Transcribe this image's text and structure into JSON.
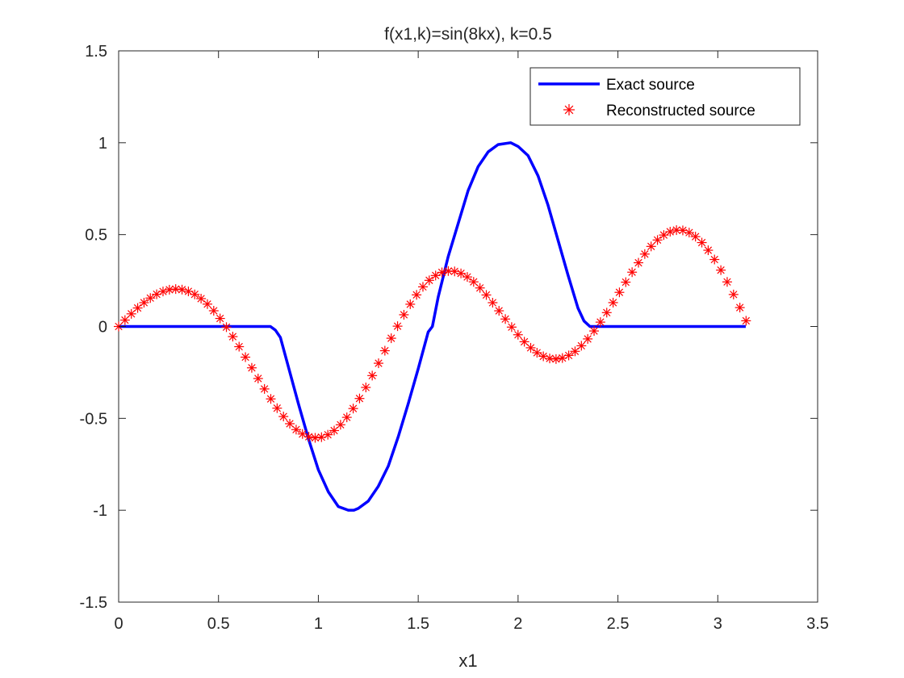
{
  "chart_data": {
    "type": "line",
    "title": "f(x1,k)=sin(8kx),   k=0.5",
    "xlabel": "x1",
    "ylabel": "",
    "xlim": [
      0,
      3.5
    ],
    "ylim": [
      -1.5,
      1.5
    ],
    "xticks": [
      0,
      0.5,
      1,
      1.5,
      2,
      2.5,
      3,
      3.5
    ],
    "xtick_labels": [
      "0",
      "0.5",
      "1",
      "1.5",
      "2",
      "2.5",
      "3",
      "3.5"
    ],
    "yticks": [
      -1.5,
      -1,
      -0.5,
      0,
      0.5,
      1,
      1.5
    ],
    "ytick_labels": [
      "-1.5",
      "-1",
      "-0.5",
      "0",
      "0.5",
      "1",
      "1.5"
    ],
    "grid": false,
    "legend_position": "top-right",
    "series": [
      {
        "name": "Exact source",
        "style": "line",
        "color": "#0000ff",
        "x": [
          0,
          0.2,
          0.4,
          0.6,
          0.76,
          0.785,
          0.81,
          0.85,
          0.9,
          0.95,
          1.0,
          1.05,
          1.1,
          1.15,
          1.178,
          1.2,
          1.25,
          1.3,
          1.35,
          1.4,
          1.45,
          1.5,
          1.55,
          1.571,
          1.6,
          1.65,
          1.7,
          1.75,
          1.8,
          1.85,
          1.9,
          1.963,
          2.0,
          2.05,
          2.1,
          2.15,
          2.2,
          2.25,
          2.3,
          2.33,
          2.36,
          2.38,
          2.6,
          2.8,
          3.0,
          3.14
        ],
        "y": [
          0,
          0,
          0,
          0,
          0,
          -0.02,
          -0.06,
          -0.22,
          -0.42,
          -0.61,
          -0.78,
          -0.9,
          -0.98,
          -1.0,
          -1.0,
          -0.99,
          -0.95,
          -0.87,
          -0.76,
          -0.6,
          -0.42,
          -0.23,
          -0.03,
          0.0,
          0.16,
          0.38,
          0.56,
          0.74,
          0.87,
          0.95,
          0.99,
          1.0,
          0.98,
          0.93,
          0.82,
          0.66,
          0.47,
          0.28,
          0.1,
          0.03,
          0.0,
          0.0,
          0,
          0,
          0,
          0
        ]
      },
      {
        "name": "Reconstructed source",
        "style": "marker",
        "marker": "asterisk",
        "color": "#ff0000",
        "x": [
          0,
          0.0317,
          0.0635,
          0.0952,
          0.127,
          0.1587,
          0.1905,
          0.2222,
          0.254,
          0.2857,
          0.3174,
          0.3492,
          0.3809,
          0.4127,
          0.4444,
          0.4761,
          0.5079,
          0.5396,
          0.5714,
          0.6031,
          0.6348,
          0.6666,
          0.6983,
          0.7301,
          0.7618,
          0.7935,
          0.8253,
          0.857,
          0.8888,
          0.9205,
          0.9522,
          0.984,
          1.0157,
          1.0475,
          1.0792,
          1.111,
          1.1427,
          1.1744,
          1.2062,
          1.2379,
          1.2697,
          1.3014,
          1.3331,
          1.3649,
          1.3966,
          1.4284,
          1.4601,
          1.4918,
          1.5236,
          1.5553,
          1.5871,
          1.6188,
          1.6505,
          1.6823,
          1.714,
          1.7458,
          1.7775,
          1.8092,
          1.841,
          1.8727,
          1.9045,
          1.9362,
          1.9679,
          1.9997,
          2.0314,
          2.0632,
          2.0949,
          2.1266,
          2.1584,
          2.1901,
          2.2219,
          2.2536,
          2.2853,
          2.3171,
          2.3488,
          2.3806,
          2.4123,
          2.4441,
          2.4758,
          2.5075,
          2.5393,
          2.571,
          2.6028,
          2.6345,
          2.6662,
          2.698,
          2.7297,
          2.7615,
          2.7932,
          2.8249,
          2.8567,
          2.8884,
          2.9202,
          2.9519,
          2.9836,
          3.0154,
          3.0471,
          3.0789,
          3.1106,
          3.1416
        ],
        "y": [
          0,
          0.0349,
          0.0688,
          0.1007,
          0.1297,
          0.1548,
          0.1753,
          0.1906,
          0.2002,
          0.2037,
          0.2007,
          0.1911,
          0.1747,
          0.1516,
          0.1218,
          0.0857,
          0.0437,
          -0.0036,
          -0.055,
          -0.1098,
          -0.1668,
          -0.225,
          -0.2831,
          -0.3399,
          -0.3941,
          -0.4445,
          -0.4899,
          -0.5291,
          -0.5611,
          -0.585,
          -0.6001,
          -0.6059,
          -0.6023,
          -0.5891,
          -0.5664,
          -0.5347,
          -0.4945,
          -0.4465,
          -0.3918,
          -0.3316,
          -0.2672,
          -0.2001,
          -0.1318,
          -0.064,
          0.0017,
          0.0639,
          0.1212,
          0.1722,
          0.2158,
          0.2511,
          0.2774,
          0.2944,
          0.3018,
          0.2998,
          0.2889,
          0.2696,
          0.2429,
          0.2098,
          0.1715,
          0.1296,
          0.0854,
          0.0406,
          -0.0033,
          -0.045,
          -0.083,
          -0.1159,
          -0.1427,
          -0.1623,
          -0.1739,
          -0.1772,
          -0.1717,
          -0.1576,
          -0.1352,
          -0.1049,
          -0.0677,
          -0.0244,
          0.0237,
          0.0755,
          0.1299,
          0.1857,
          0.2413,
          0.2955,
          0.3469,
          0.3941,
          0.4357,
          0.4706,
          0.4976,
          0.5158,
          0.5245,
          0.523,
          0.5111,
          0.4889,
          0.4566,
          0.4149,
          0.3645,
          0.3067,
          0.2427,
          0.1741,
          0.1029,
          0.0311
        ]
      }
    ]
  },
  "colors": {
    "exact_line": "#0000ff",
    "reconstructed_marker": "#ff0000",
    "axes": "#262626",
    "background": "#ffffff"
  }
}
